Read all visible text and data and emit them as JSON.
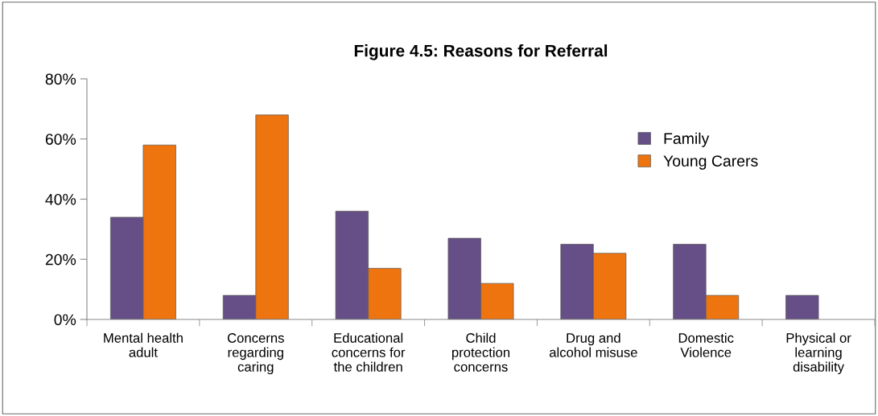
{
  "chart_data": {
    "type": "bar",
    "title": "Figure 4.5: Reasons for Referral",
    "categories": [
      "Mental health\nadult",
      "Concerns\nregarding\ncaring",
      "Educational\nconcerns for\nthe children",
      "Child\nprotection\nconcerns",
      "Drug and\nalcohol misuse",
      "Domestic\nViolence",
      "Physical or\nlearning\ndisability"
    ],
    "series": [
      {
        "name": "Family",
        "color": "#664f86",
        "values": [
          34,
          8,
          36,
          27,
          25,
          25,
          8
        ]
      },
      {
        "name": "Young Carers",
        "color": "#ee7410",
        "values": [
          58,
          68,
          17,
          12,
          22,
          8,
          null
        ]
      }
    ],
    "ylim": [
      0,
      80
    ],
    "yticks": [
      {
        "value": 0,
        "label": "0%"
      },
      {
        "value": 20,
        "label": "20%"
      },
      {
        "value": 40,
        "label": "40%"
      },
      {
        "value": 60,
        "label": "60%"
      },
      {
        "value": 80,
        "label": "80%"
      }
    ],
    "grid": false,
    "legend": "right"
  }
}
